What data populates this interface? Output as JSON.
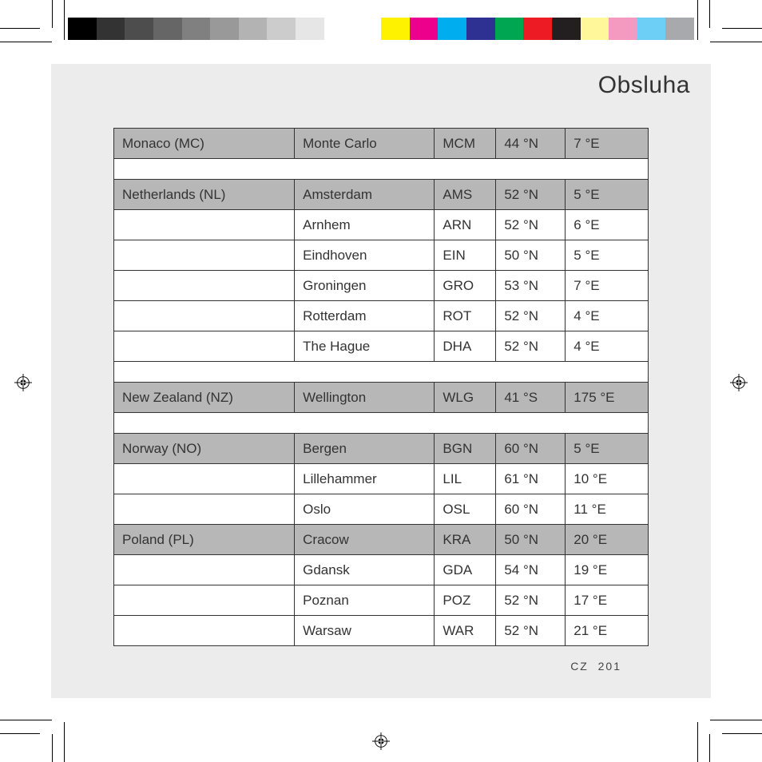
{
  "page": {
    "title": "Obsluha",
    "footer_code": "CZ",
    "footer_page": "201"
  },
  "color_bar": {
    "swatches": [
      "#000000",
      "#333333",
      "#4d4d4d",
      "#666666",
      "#808080",
      "#999999",
      "#b3b3b3",
      "#cccccc",
      "#e6e6e6",
      "#ffffff",
      "#ffffff",
      "#fff200",
      "#ec008c",
      "#00aeef",
      "#2e3192",
      "#00a651",
      "#ed1c24",
      "#231f20",
      "#fff799",
      "#f49ac1",
      "#6dcff6",
      "#a7a9ac"
    ]
  },
  "table": {
    "columns": [
      "country",
      "city",
      "code",
      "lat",
      "lon"
    ],
    "col_widths_pct": [
      33.8,
      26.2,
      11.5,
      13.0,
      15.5
    ],
    "border_color": "#333333",
    "header_bg": "#b7b7b7",
    "row_bg": "#ffffff",
    "font_size_pt": 13,
    "rows": [
      {
        "type": "header",
        "country": "Monaco (MC)",
        "city": "Monte Carlo",
        "code": "MCM",
        "lat": "44 °N",
        "lon": "7 °E"
      },
      {
        "type": "spacer"
      },
      {
        "type": "header",
        "country": "Netherlands (NL)",
        "city": "Amsterdam",
        "code": "AMS",
        "lat": "52 °N",
        "lon": "5 °E"
      },
      {
        "type": "row",
        "country": "",
        "city": "Arnhem",
        "code": "ARN",
        "lat": "52 °N",
        "lon": "6 °E"
      },
      {
        "type": "row",
        "country": "",
        "city": "Eindhoven",
        "code": "EIN",
        "lat": "50 °N",
        "lon": "5 °E"
      },
      {
        "type": "row",
        "country": "",
        "city": "Groningen",
        "code": "GRO",
        "lat": "53 °N",
        "lon": "7 °E"
      },
      {
        "type": "row",
        "country": "",
        "city": "Rotterdam",
        "code": "ROT",
        "lat": "52 °N",
        "lon": "4 °E"
      },
      {
        "type": "row",
        "country": "",
        "city": "The Hague",
        "code": "DHA",
        "lat": "52 °N",
        "lon": "4 °E"
      },
      {
        "type": "spacer"
      },
      {
        "type": "header",
        "country": "New Zealand (NZ)",
        "city": "Wellington",
        "code": "WLG",
        "lat": "41 °S",
        "lon": "175 °E"
      },
      {
        "type": "spacer"
      },
      {
        "type": "header",
        "country": "Norway (NO)",
        "city": "Bergen",
        "code": "BGN",
        "lat": "60 °N",
        "lon": "5 °E"
      },
      {
        "type": "row",
        "country": "",
        "city": "Lillehammer",
        "code": "LIL",
        "lat": "61 °N",
        "lon": "10 °E"
      },
      {
        "type": "row",
        "country": "",
        "city": "Oslo",
        "code": "OSL",
        "lat": "60 °N",
        "lon": "11 °E"
      },
      {
        "type": "header",
        "country": "Poland (PL)",
        "city": "Cracow",
        "code": "KRA",
        "lat": "50 °N",
        "lon": "20 °E"
      },
      {
        "type": "row",
        "country": "",
        "city": "Gdansk",
        "code": "GDA",
        "lat": "54 °N",
        "lon": "19 °E"
      },
      {
        "type": "row",
        "country": "",
        "city": "Poznan",
        "code": "POZ",
        "lat": "52 °N",
        "lon": "17 °E"
      },
      {
        "type": "row",
        "country": "",
        "city": "Warsaw",
        "code": "WAR",
        "lat": "52 °N",
        "lon": "21 °E"
      }
    ]
  }
}
